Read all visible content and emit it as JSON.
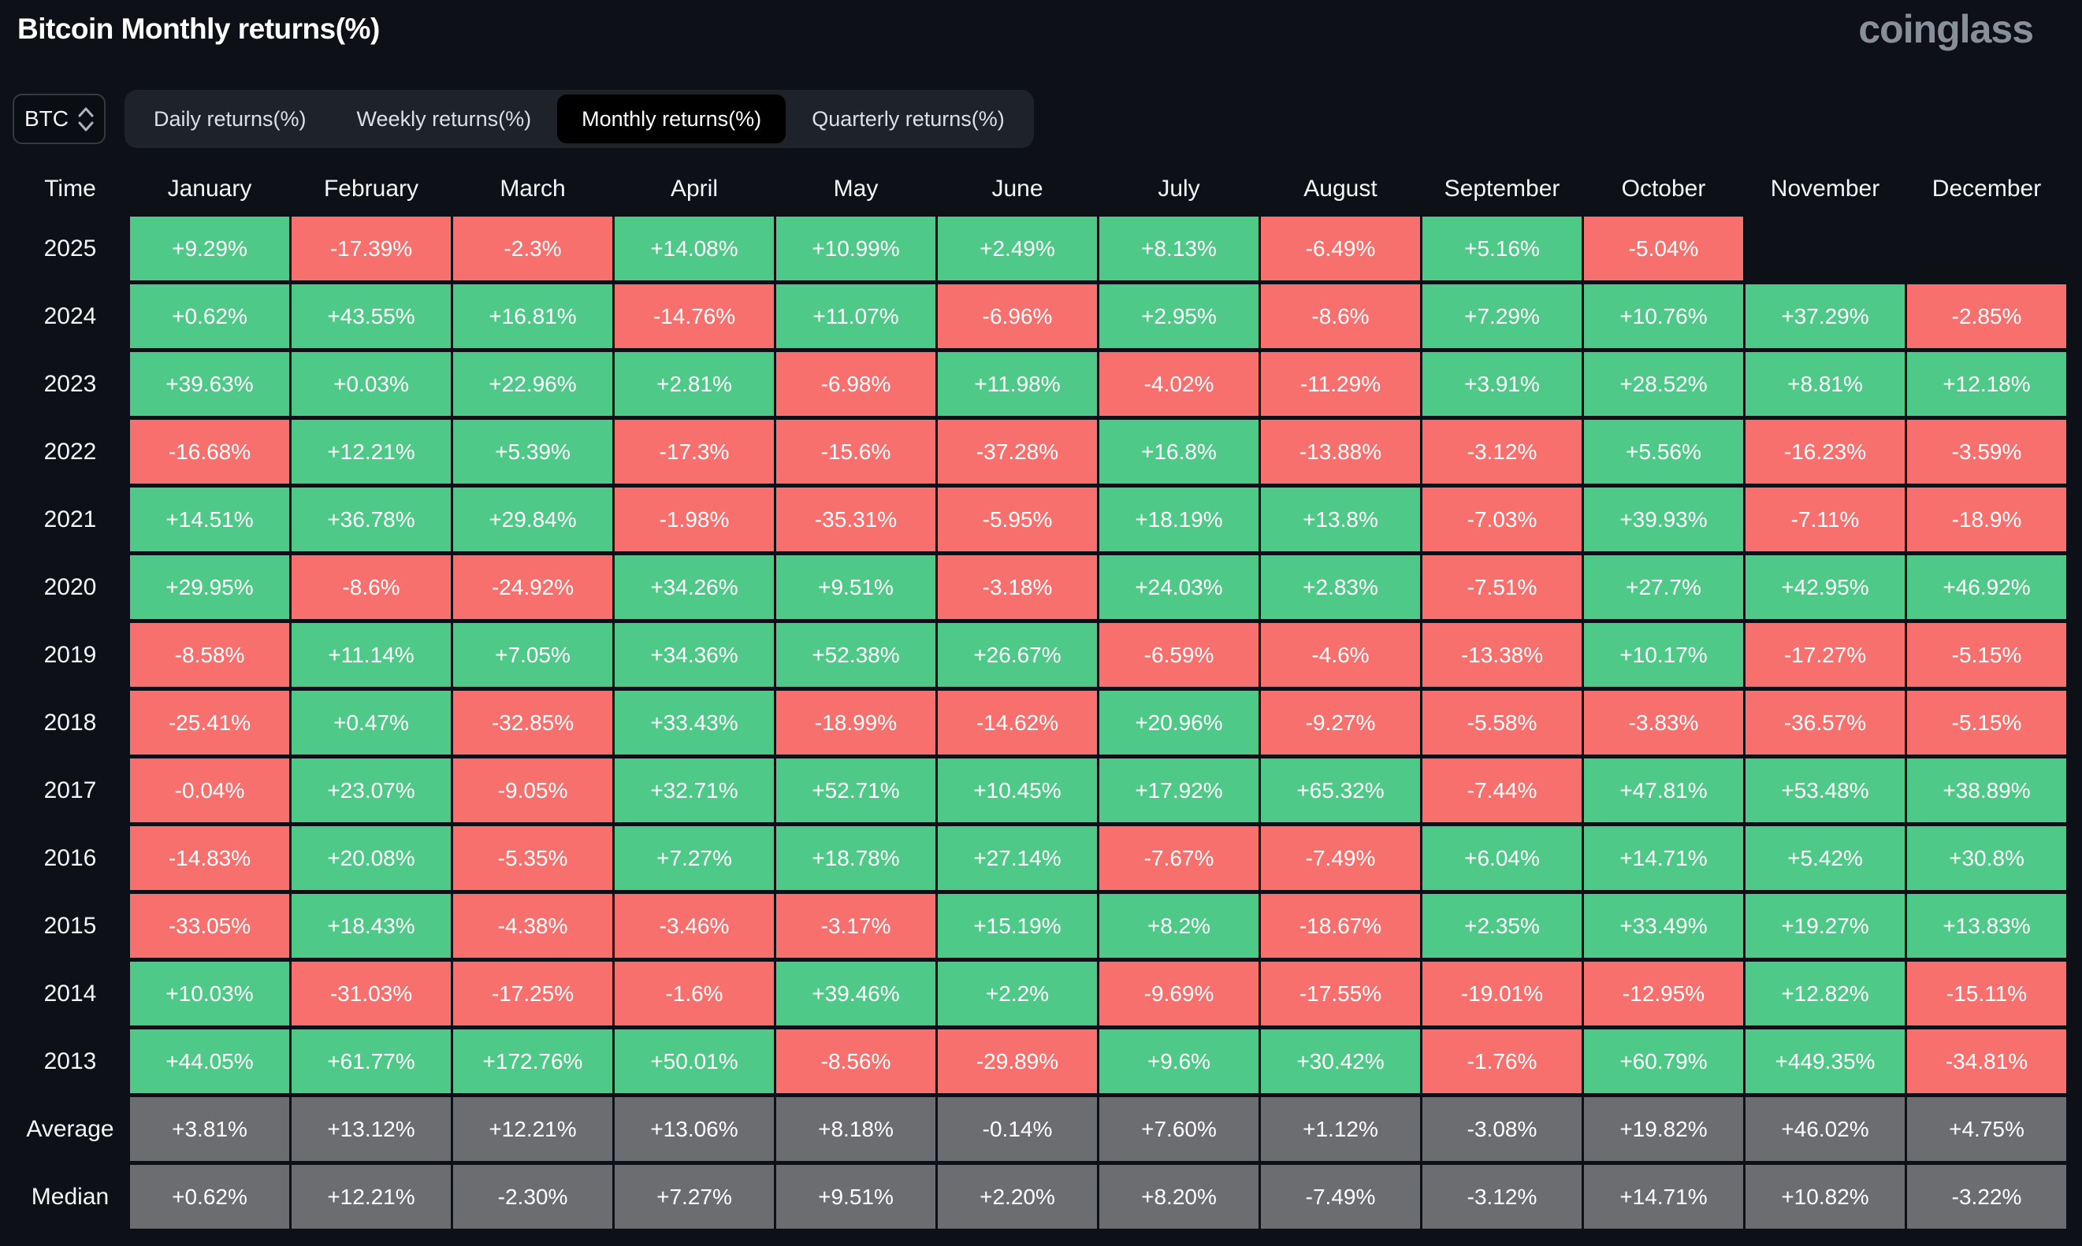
{
  "page": {
    "title": "Bitcoin Monthly returns(%)",
    "logo": "coinglass"
  },
  "controls": {
    "coin": {
      "label": "BTC",
      "sort_icon": "up-down-chevrons"
    },
    "tabs": [
      {
        "label": "Daily returns(%)",
        "active": false
      },
      {
        "label": "Weekly returns(%)",
        "active": false
      },
      {
        "label": "Monthly returns(%)",
        "active": true
      },
      {
        "label": "Quarterly returns(%)",
        "active": false
      }
    ]
  },
  "chart_data": {
    "type": "heatmap",
    "title": "Bitcoin Monthly returns(%)",
    "columns": [
      "Time",
      "January",
      "February",
      "March",
      "April",
      "May",
      "June",
      "July",
      "August",
      "September",
      "October",
      "November",
      "December"
    ],
    "rows": [
      {
        "label": "2025",
        "summary": false,
        "values": [
          "+9.29%",
          "-17.39%",
          "-2.3%",
          "+14.08%",
          "+10.99%",
          "+2.49%",
          "+8.13%",
          "-6.49%",
          "+5.16%",
          "-5.04%",
          null,
          null
        ]
      },
      {
        "label": "2024",
        "summary": false,
        "values": [
          "+0.62%",
          "+43.55%",
          "+16.81%",
          "-14.76%",
          "+11.07%",
          "-6.96%",
          "+2.95%",
          "-8.6%",
          "+7.29%",
          "+10.76%",
          "+37.29%",
          "-2.85%"
        ]
      },
      {
        "label": "2023",
        "summary": false,
        "values": [
          "+39.63%",
          "+0.03%",
          "+22.96%",
          "+2.81%",
          "-6.98%",
          "+11.98%",
          "-4.02%",
          "-11.29%",
          "+3.91%",
          "+28.52%",
          "+8.81%",
          "+12.18%"
        ]
      },
      {
        "label": "2022",
        "summary": false,
        "values": [
          "-16.68%",
          "+12.21%",
          "+5.39%",
          "-17.3%",
          "-15.6%",
          "-37.28%",
          "+16.8%",
          "-13.88%",
          "-3.12%",
          "+5.56%",
          "-16.23%",
          "-3.59%"
        ]
      },
      {
        "label": "2021",
        "summary": false,
        "values": [
          "+14.51%",
          "+36.78%",
          "+29.84%",
          "-1.98%",
          "-35.31%",
          "-5.95%",
          "+18.19%",
          "+13.8%",
          "-7.03%",
          "+39.93%",
          "-7.11%",
          "-18.9%"
        ]
      },
      {
        "label": "2020",
        "summary": false,
        "values": [
          "+29.95%",
          "-8.6%",
          "-24.92%",
          "+34.26%",
          "+9.51%",
          "-3.18%",
          "+24.03%",
          "+2.83%",
          "-7.51%",
          "+27.7%",
          "+42.95%",
          "+46.92%"
        ]
      },
      {
        "label": "2019",
        "summary": false,
        "values": [
          "-8.58%",
          "+11.14%",
          "+7.05%",
          "+34.36%",
          "+52.38%",
          "+26.67%",
          "-6.59%",
          "-4.6%",
          "-13.38%",
          "+10.17%",
          "-17.27%",
          "-5.15%"
        ]
      },
      {
        "label": "2018",
        "summary": false,
        "values": [
          "-25.41%",
          "+0.47%",
          "-32.85%",
          "+33.43%",
          "-18.99%",
          "-14.62%",
          "+20.96%",
          "-9.27%",
          "-5.58%",
          "-3.83%",
          "-36.57%",
          "-5.15%"
        ]
      },
      {
        "label": "2017",
        "summary": false,
        "values": [
          "-0.04%",
          "+23.07%",
          "-9.05%",
          "+32.71%",
          "+52.71%",
          "+10.45%",
          "+17.92%",
          "+65.32%",
          "-7.44%",
          "+47.81%",
          "+53.48%",
          "+38.89%"
        ]
      },
      {
        "label": "2016",
        "summary": false,
        "values": [
          "-14.83%",
          "+20.08%",
          "-5.35%",
          "+7.27%",
          "+18.78%",
          "+27.14%",
          "-7.67%",
          "-7.49%",
          "+6.04%",
          "+14.71%",
          "+5.42%",
          "+30.8%"
        ]
      },
      {
        "label": "2015",
        "summary": false,
        "values": [
          "-33.05%",
          "+18.43%",
          "-4.38%",
          "-3.46%",
          "-3.17%",
          "+15.19%",
          "+8.2%",
          "-18.67%",
          "+2.35%",
          "+33.49%",
          "+19.27%",
          "+13.83%"
        ]
      },
      {
        "label": "2014",
        "summary": false,
        "values": [
          "+10.03%",
          "-31.03%",
          "-17.25%",
          "-1.6%",
          "+39.46%",
          "+2.2%",
          "-9.69%",
          "-17.55%",
          "-19.01%",
          "-12.95%",
          "+12.82%",
          "-15.11%"
        ]
      },
      {
        "label": "2013",
        "summary": false,
        "values": [
          "+44.05%",
          "+61.77%",
          "+172.76%",
          "+50.01%",
          "-8.56%",
          "-29.89%",
          "+9.6%",
          "+30.42%",
          "-1.76%",
          "+60.79%",
          "+449.35%",
          "-34.81%"
        ]
      },
      {
        "label": "Average",
        "summary": true,
        "values": [
          "+3.81%",
          "+13.12%",
          "+12.21%",
          "+13.06%",
          "+8.18%",
          "-0.14%",
          "+7.60%",
          "+1.12%",
          "-3.08%",
          "+19.82%",
          "+46.02%",
          "+4.75%"
        ]
      },
      {
        "label": "Median",
        "summary": true,
        "values": [
          "+0.62%",
          "+12.21%",
          "-2.30%",
          "+7.27%",
          "+9.51%",
          "+2.20%",
          "+8.20%",
          "-7.49%",
          "-3.12%",
          "+14.71%",
          "+10.82%",
          "-3.22%"
        ]
      }
    ],
    "colors": {
      "positive": "#4FC987",
      "negative": "#F8706E",
      "summary": "#6B6D71",
      "page_bg": "#0D1117",
      "tab_bar_bg": "#1E222A",
      "tab_active_bg": "#000000",
      "logo_gray": "#878F99"
    },
    "legend_position": "none",
    "grid": false
  }
}
